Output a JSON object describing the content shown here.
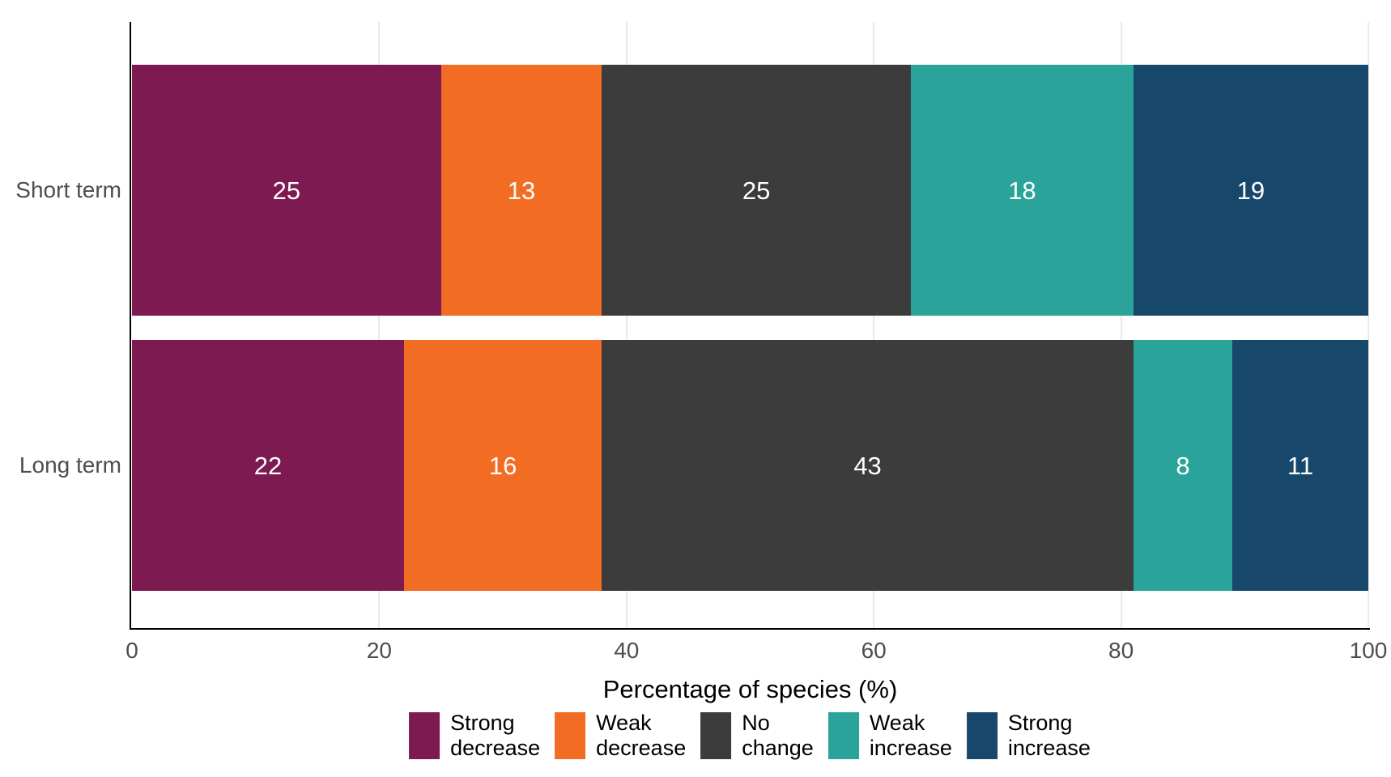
{
  "chart_data": {
    "type": "bar",
    "orientation": "horizontal",
    "stacked": true,
    "categories": [
      "Short term",
      "Long term"
    ],
    "series": [
      {
        "name": "Strong decrease",
        "label_lines": [
          "Strong",
          "decrease"
        ],
        "color": "#7E1A52",
        "values": [
          25,
          22
        ]
      },
      {
        "name": "Weak decrease",
        "label_lines": [
          "Weak",
          "decrease"
        ],
        "color": "#F36C23",
        "values": [
          13,
          16
        ]
      },
      {
        "name": "No change",
        "label_lines": [
          "No",
          "change"
        ],
        "color": "#3C3C3C",
        "values": [
          25,
          43
        ]
      },
      {
        "name": "Weak increase",
        "label_lines": [
          "Weak",
          "increase"
        ],
        "color": "#2AA39A",
        "values": [
          18,
          8
        ]
      },
      {
        "name": "Strong increase",
        "label_lines": [
          "Strong",
          "increase"
        ],
        "color": "#17486B",
        "values": [
          19,
          11
        ]
      }
    ],
    "bar_value_labels": [
      [
        25,
        13,
        25,
        18,
        19
      ],
      [
        22,
        16,
        43,
        8,
        11
      ]
    ],
    "xlabel": "Percentage of species (%)",
    "xlim": [
      0,
      100
    ],
    "xticks": [
      0,
      20,
      40,
      60,
      80,
      100
    ],
    "grid": "vertical-light",
    "legend_position": "bottom",
    "colors": {
      "bar_value_text": "#ffffff",
      "axis_line": "#000000",
      "tick_label": "#4d4d4d",
      "category_label": "#4d4d4d",
      "gridline": "#e9e9e9",
      "background": "#ffffff"
    }
  }
}
